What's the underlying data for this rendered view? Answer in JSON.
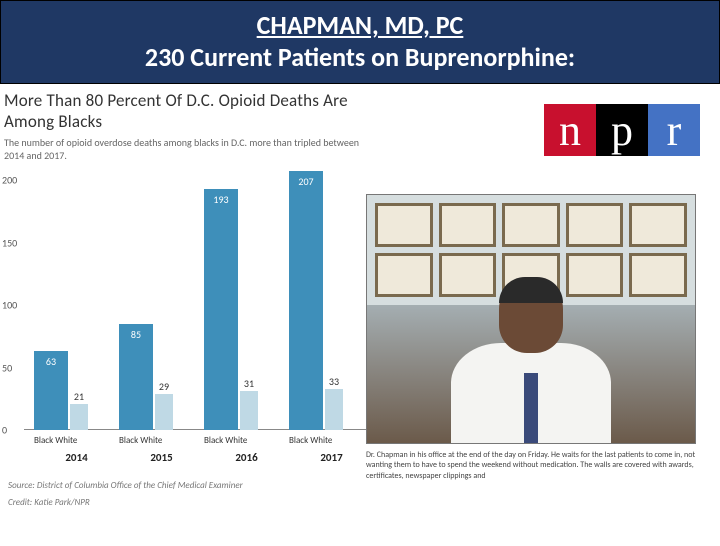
{
  "header": {
    "title": "CHAPMAN, MD, PC",
    "subtitle": "230 Current Patients on Buprenorphine:"
  },
  "chart": {
    "type": "bar",
    "title": "More Than 80 Percent Of D.C. Opioid Deaths Are Among Blacks",
    "subtitle": "The number of opioid overdose deaths among blacks in D.C. more than tripled between 2014 and 2017.",
    "ylim": [
      0,
      200
    ],
    "ytick_step": 50,
    "yticks": [
      0,
      50,
      100,
      150,
      200
    ],
    "years": [
      "2014",
      "2015",
      "2016",
      "2017"
    ],
    "cat_labels": [
      "Black",
      "White"
    ],
    "series": [
      {
        "black": 63,
        "white": 21
      },
      {
        "black": 85,
        "white": 29
      },
      {
        "black": 193,
        "white": 31
      },
      {
        "black": 207,
        "white": 33
      }
    ],
    "colors": {
      "black_bar": "#3e8fba",
      "white_bar": "#bfd9e5",
      "background": "#ffffff",
      "axis": "#888888",
      "text": "#333333"
    },
    "bar_width_black": 34,
    "bar_width_white": 18,
    "source": "Source: District of Columbia Office of the Chief Medical Examiner",
    "credit": "Credit: Katie Park/NPR"
  },
  "npr": {
    "letters": [
      "n",
      "p",
      "r"
    ],
    "colors": [
      "#c8102e",
      "#000000",
      "#4472c4"
    ]
  },
  "photo": {
    "caption": "Dr. Chapman in his office at the end of the day on Friday. He waits for the last patients to come in, not wanting them to have to spend the weekend without medication. The walls are covered with awards, certificates, newspaper clippings and"
  }
}
